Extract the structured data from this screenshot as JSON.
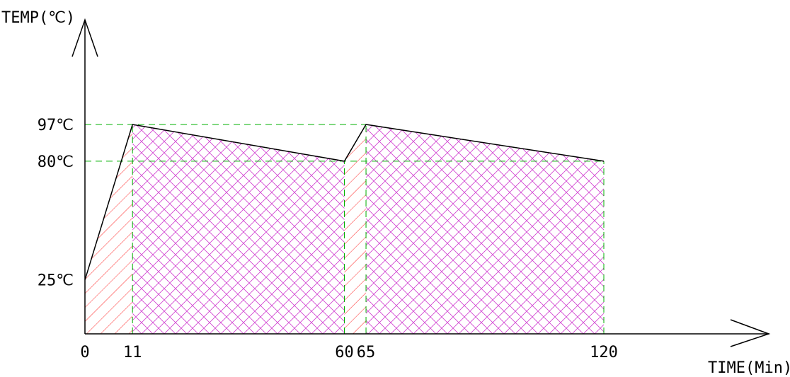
{
  "chart_data": {
    "type": "area",
    "title": "",
    "ylabel": "TEMP(℃)",
    "xlabel": "TIME(Min)",
    "x_ticks": [
      "0",
      "11",
      "60",
      "65",
      "120"
    ],
    "y_ticks": [
      "25℃",
      "80℃",
      "97℃"
    ],
    "series": [
      {
        "x": [
          0,
          11,
          60,
          65,
          120
        ],
        "y": [
          25,
          97,
          80,
          97,
          80
        ]
      }
    ],
    "heating_segments": [
      [
        0,
        11
      ],
      [
        60,
        65
      ]
    ],
    "holding_segments": [
      [
        11,
        60
      ],
      [
        65,
        120
      ]
    ],
    "ylim": [
      0,
      140
    ],
    "xlim": [
      0,
      160
    ],
    "colors": {
      "axis": "#000000",
      "curve": "#000000",
      "guide": "#00b000",
      "heating_hatch": "#ff2a2a",
      "holding_hatch": "#d040d0"
    }
  }
}
